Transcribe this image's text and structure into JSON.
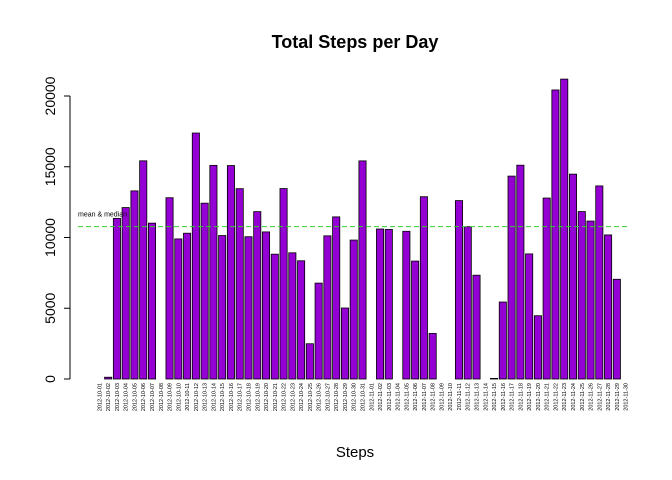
{
  "chart_data": {
    "type": "bar",
    "title": "Total Steps per Day",
    "xlabel": "Steps",
    "ylabel": "",
    "ylim": [
      0,
      22000
    ],
    "yticks": [
      0,
      5000,
      10000,
      15000,
      20000
    ],
    "grid": false,
    "bar_color": "#9400D3",
    "reference_line": {
      "label": "mean & median",
      "value": 10766,
      "color": "#33CC33",
      "style": "dashed"
    },
    "categories": [
      "2012-10-01",
      "2012-10-02",
      "2012-10-03",
      "2012-10-04",
      "2012-10-05",
      "2012-10-06",
      "2012-10-07",
      "2012-10-08",
      "2012-10-09",
      "2012-10-10",
      "2012-10-11",
      "2012-10-12",
      "2012-10-13",
      "2012-10-14",
      "2012-10-15",
      "2012-10-16",
      "2012-10-17",
      "2012-10-18",
      "2012-10-19",
      "2012-10-20",
      "2012-10-21",
      "2012-10-22",
      "2012-10-23",
      "2012-10-24",
      "2012-10-25",
      "2012-10-26",
      "2012-10-27",
      "2012-10-28",
      "2012-10-29",
      "2012-10-30",
      "2012-10-31",
      "2012-11-01",
      "2012-11-02",
      "2012-11-03",
      "2012-11-04",
      "2012-11-05",
      "2012-11-06",
      "2012-11-07",
      "2012-11-08",
      "2012-11-09",
      "2012-11-10",
      "2012-11-11",
      "2012-11-12",
      "2012-11-13",
      "2012-11-14",
      "2012-11-15",
      "2012-11-16",
      "2012-11-17",
      "2012-11-18",
      "2012-11-19",
      "2012-11-20",
      "2012-11-21",
      "2012-11-22",
      "2012-11-23",
      "2012-11-24",
      "2012-11-25",
      "2012-11-26",
      "2012-11-27",
      "2012-11-28",
      "2012-11-29",
      "2012-11-30"
    ],
    "values": [
      null,
      126,
      11352,
      12116,
      13294,
      15420,
      11015,
      null,
      12811,
      9900,
      10304,
      17382,
      12426,
      15098,
      10139,
      15084,
      13452,
      10056,
      11829,
      10395,
      8821,
      13460,
      8918,
      8355,
      2492,
      6778,
      10119,
      11458,
      5018,
      9819,
      15414,
      null,
      10600,
      10571,
      null,
      10439,
      8334,
      12883,
      3219,
      null,
      null,
      12608,
      10765,
      7336,
      null,
      41,
      5441,
      14339,
      15110,
      8841,
      4472,
      12787,
      20427,
      21194,
      14478,
      11834,
      11162,
      13646,
      10183,
      7047,
      null
    ]
  }
}
